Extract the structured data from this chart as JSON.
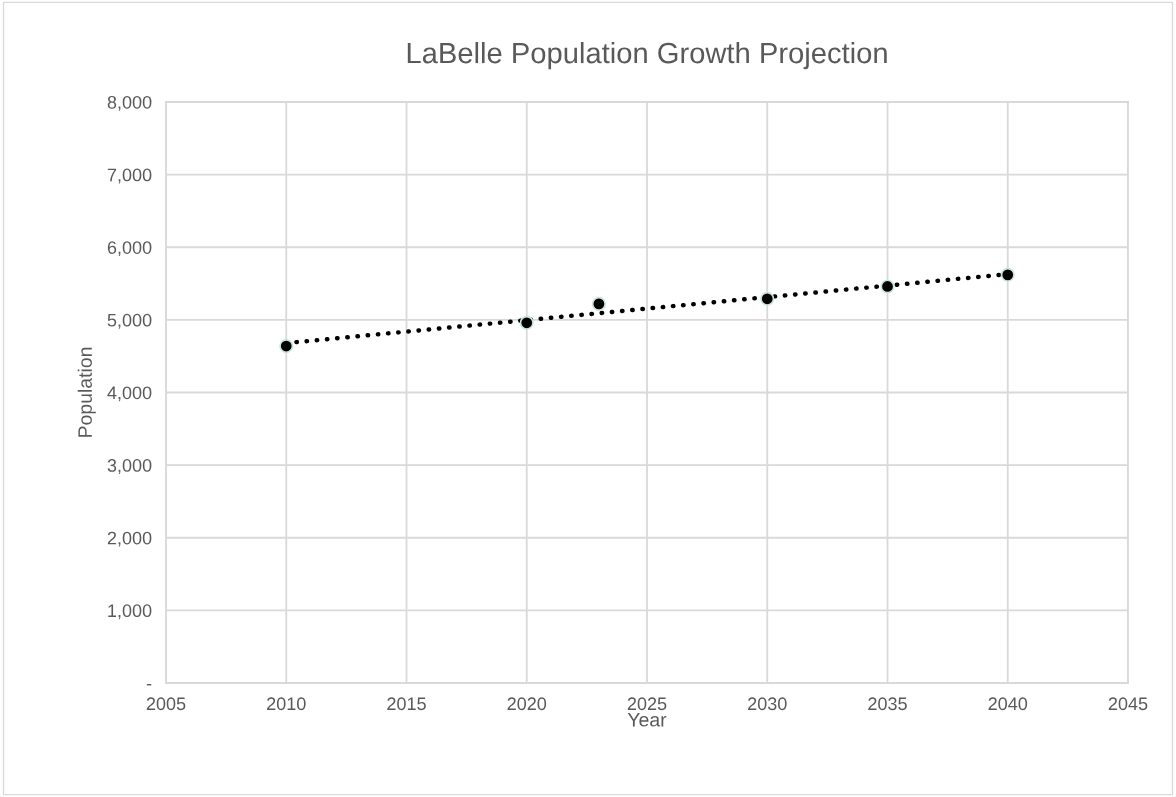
{
  "chart_data": {
    "type": "scatter",
    "title": "LaBelle Population Growth Projection",
    "xlabel": "Year",
    "ylabel": "Population",
    "series": [
      {
        "color": "#000000",
        "x": [
          2010,
          2020,
          2023,
          2030,
          2035,
          2040
        ],
        "values": [
          4640,
          4960,
          5220,
          5290,
          5460,
          5620
        ],
        "marker": "circle"
      },
      {
        "type": "line",
        "color": "#000000",
        "x": [
          2010,
          2040
        ],
        "values": [
          4680,
          5630
        ],
        "line_style": "dotted",
        "marker": "none"
      }
    ],
    "xlim": [
      2005,
      2045
    ],
    "xticks": [
      2005,
      2010,
      2015,
      2020,
      2025,
      2030,
      2035,
      2040,
      2045
    ],
    "ylim": [
      0,
      8000
    ],
    "yticks": [
      {
        "value": 0,
        "label": "-"
      },
      {
        "value": 1000,
        "label": "1,000"
      },
      {
        "value": 2000,
        "label": "2,000"
      },
      {
        "value": 3000,
        "label": "3,000"
      },
      {
        "value": 4000,
        "label": "4,000"
      },
      {
        "value": 5000,
        "label": "5,000"
      },
      {
        "value": 6000,
        "label": "6,000"
      },
      {
        "value": 7000,
        "label": "7,000"
      },
      {
        "value": 8000,
        "label": "8,000"
      }
    ],
    "grid": true,
    "legend": false
  }
}
